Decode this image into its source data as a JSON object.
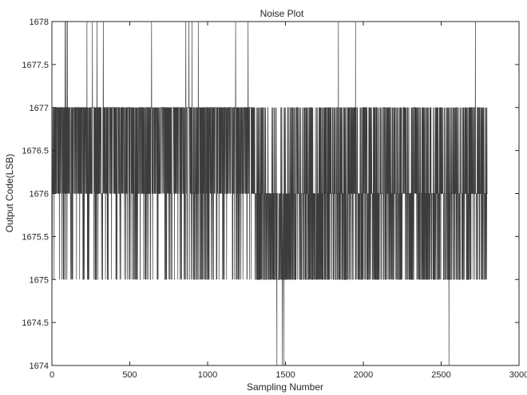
{
  "chart_data": {
    "type": "line",
    "title": "Noise Plot",
    "xlabel": "Sampling Number",
    "ylabel": "Output Code(LSB)",
    "xlim": [
      0,
      3000
    ],
    "ylim": [
      1674,
      1678
    ],
    "xticks": [
      0,
      500,
      1000,
      1500,
      2000,
      2500,
      3000
    ],
    "yticks": [
      1674,
      1674.5,
      1675,
      1675.5,
      1676,
      1676.5,
      1677,
      1677.5,
      1678
    ],
    "xtick_labels": [
      "0",
      "500",
      "1000",
      "1500",
      "2000",
      "2500",
      "3000"
    ],
    "ytick_labels": [
      "1674",
      "1674.5",
      "1675",
      "1675.5",
      "1676",
      "1676.5",
      "1677",
      "1677.5",
      "1678"
    ],
    "grid": false,
    "series": [
      {
        "sample_count": 2800,
        "baseline_code": 1676,
        "line_color": "#3c3c3c",
        "segments": [
          {
            "x": [
              0,
              1300
            ],
            "high_code": 1677,
            "low_code": 1675,
            "high_share": 0.55,
            "low_share": 0.12
          },
          {
            "x": [
              1300,
              1750
            ],
            "high_code": 1677,
            "low_code": 1675,
            "high_share": 0.18,
            "low_share": 0.45
          },
          {
            "x": [
              1750,
              2800
            ],
            "high_code": 1677,
            "low_code": 1675,
            "high_share": 0.32,
            "low_share": 0.3
          }
        ],
        "spikes_to_1678": [
          85,
          92,
          100,
          225,
          260,
          290,
          330,
          640,
          860,
          880,
          900,
          940,
          1180,
          1260,
          1840,
          1950,
          2720
        ],
        "drops_to_1674": [
          1445,
          1480,
          1490,
          2550
        ]
      }
    ]
  }
}
